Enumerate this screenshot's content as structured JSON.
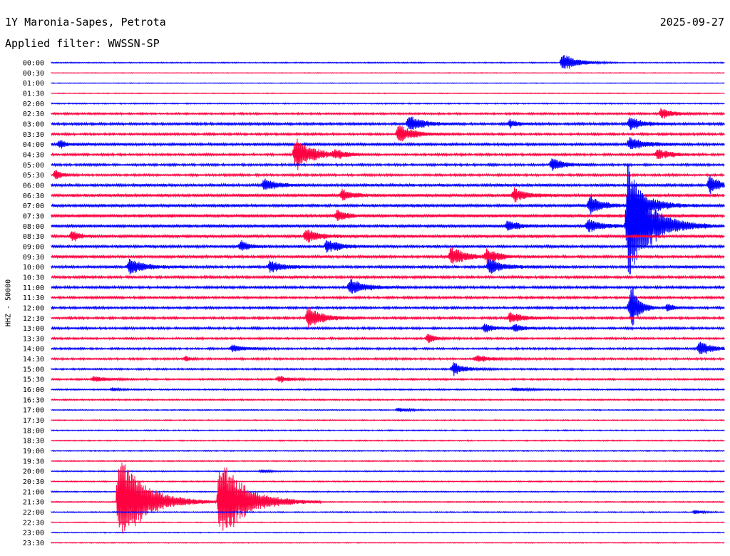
{
  "header": {
    "station": "1Y Maronia-Sapes, Petrota",
    "date": "2025-09-27",
    "filter": "Applied filter: WWSSN-SP"
  },
  "chart_data": {
    "type": "line",
    "subtype": "helicorder",
    "ylabel": "HHZ - 50000",
    "row_labels": [
      "00:00",
      "00:30",
      "01:00",
      "01:30",
      "02:00",
      "02:30",
      "03:00",
      "03:30",
      "04:00",
      "04:30",
      "05:00",
      "05:30",
      "06:00",
      "06:30",
      "07:00",
      "07:30",
      "08:00",
      "08:30",
      "09:00",
      "09:30",
      "10:00",
      "10:30",
      "11:00",
      "11:30",
      "12:00",
      "12:30",
      "13:00",
      "13:30",
      "14:00",
      "14:30",
      "15:00",
      "15:30",
      "16:00",
      "16:30",
      "17:00",
      "17:30",
      "18:00",
      "18:30",
      "19:00",
      "19:30",
      "20:00",
      "20:30",
      "21:00",
      "21:30",
      "22:00",
      "22:30",
      "23:00",
      "23:30"
    ],
    "colors": [
      "#0000ff",
      "#ff0040"
    ],
    "noise_levels": [
      0.8,
      0.5,
      0.5,
      0.6,
      0.8,
      1.4,
      1.8,
      1.6,
      2.0,
      1.6,
      1.6,
      1.6,
      2.0,
      2.2,
      2.2,
      2.4,
      2.2,
      2.2,
      2.0,
      2.0,
      2.0,
      1.8,
      1.8,
      1.6,
      1.6,
      1.6,
      1.6,
      1.4,
      1.4,
      1.4,
      1.2,
      1.2,
      1.0,
      1.0,
      0.8,
      0.8,
      0.8,
      0.8,
      0.8,
      0.8,
      0.8,
      0.8,
      0.8,
      0.8,
      0.8,
      0.6,
      0.6,
      0.6
    ],
    "events": [
      {
        "row": 0,
        "minute": 24.3,
        "amplitude": 14,
        "duration": 1.2
      },
      {
        "row": 5,
        "minute": 29.0,
        "amplitude": 8,
        "duration": 1.0
      },
      {
        "row": 6,
        "minute": 17.0,
        "amplitude": 12,
        "duration": 1.2
      },
      {
        "row": 6,
        "minute": 21.8,
        "amplitude": 6,
        "duration": 0.6
      },
      {
        "row": 6,
        "minute": 27.5,
        "amplitude": 10,
        "duration": 1.0
      },
      {
        "row": 7,
        "minute": 16.5,
        "amplitude": 14,
        "duration": 1.2
      },
      {
        "row": 8,
        "minute": 0.4,
        "amplitude": 6,
        "duration": 0.6
      },
      {
        "row": 8,
        "minute": 27.5,
        "amplitude": 10,
        "duration": 1.2
      },
      {
        "row": 9,
        "minute": 11.6,
        "amplitude": 26,
        "duration": 1.4
      },
      {
        "row": 9,
        "minute": 13.5,
        "amplitude": 6,
        "duration": 0.8
      },
      {
        "row": 9,
        "minute": 28.8,
        "amplitude": 9,
        "duration": 1.0
      },
      {
        "row": 10,
        "minute": 23.8,
        "amplitude": 10,
        "duration": 1.0
      },
      {
        "row": 11,
        "minute": 0.2,
        "amplitude": 8,
        "duration": 0.5
      },
      {
        "row": 12,
        "minute": 10.1,
        "amplitude": 10,
        "duration": 1.0
      },
      {
        "row": 12,
        "minute": 31.3,
        "amplitude": 14,
        "duration": 1.0
      },
      {
        "row": 13,
        "minute": 13.8,
        "amplitude": 8,
        "duration": 1.0
      },
      {
        "row": 13,
        "minute": 22.0,
        "amplitude": 10,
        "duration": 1.0
      },
      {
        "row": 14,
        "minute": 25.6,
        "amplitude": 14,
        "duration": 1.0
      },
      {
        "row": 14,
        "minute": 27.6,
        "amplitude": 34,
        "duration": 1.4
      },
      {
        "row": 15,
        "minute": 13.6,
        "amplitude": 8,
        "duration": 0.8
      },
      {
        "row": 16,
        "minute": 21.7,
        "amplitude": 9,
        "duration": 0.8
      },
      {
        "row": 16,
        "minute": 25.5,
        "amplitude": 10,
        "duration": 1.2
      },
      {
        "row": 16,
        "minute": 27.4,
        "amplitude": 90,
        "duration": 1.8
      },
      {
        "row": 17,
        "minute": 1.0,
        "amplitude": 8,
        "duration": 0.6
      },
      {
        "row": 17,
        "minute": 12.1,
        "amplitude": 10,
        "duration": 1.0
      },
      {
        "row": 18,
        "minute": 9.0,
        "amplitude": 8,
        "duration": 0.8
      },
      {
        "row": 18,
        "minute": 13.1,
        "amplitude": 10,
        "duration": 1.0
      },
      {
        "row": 19,
        "minute": 19.0,
        "amplitude": 14,
        "duration": 1.2
      },
      {
        "row": 19,
        "minute": 20.7,
        "amplitude": 10,
        "duration": 1.0
      },
      {
        "row": 20,
        "minute": 3.7,
        "amplitude": 12,
        "duration": 1.2
      },
      {
        "row": 20,
        "minute": 10.4,
        "amplitude": 10,
        "duration": 1.0
      },
      {
        "row": 20,
        "minute": 20.8,
        "amplitude": 12,
        "duration": 1.2
      },
      {
        "row": 22,
        "minute": 14.2,
        "amplitude": 12,
        "duration": 1.2
      },
      {
        "row": 24,
        "minute": 27.5,
        "amplitude": 14,
        "duration": 0.6
      },
      {
        "row": 24,
        "minute": 27.6,
        "amplitude": 26,
        "duration": 0.6
      },
      {
        "row": 24,
        "minute": 29.3,
        "amplitude": 6,
        "duration": 0.6
      },
      {
        "row": 25,
        "minute": 12.2,
        "amplitude": 16,
        "duration": 1.2
      },
      {
        "row": 25,
        "minute": 21.8,
        "amplitude": 8,
        "duration": 1.2
      },
      {
        "row": 26,
        "minute": 20.6,
        "amplitude": 6,
        "duration": 0.8
      },
      {
        "row": 26,
        "minute": 22.0,
        "amplitude": 6,
        "duration": 0.8
      },
      {
        "row": 27,
        "minute": 17.9,
        "amplitude": 6,
        "duration": 0.8
      },
      {
        "row": 28,
        "minute": 8.6,
        "amplitude": 6,
        "duration": 1.0
      },
      {
        "row": 28,
        "minute": 30.8,
        "amplitude": 12,
        "duration": 1.0
      },
      {
        "row": 29,
        "minute": 6.4,
        "amplitude": 4,
        "duration": 0.4
      },
      {
        "row": 29,
        "minute": 20.2,
        "amplitude": 5,
        "duration": 1.2
      },
      {
        "row": 30,
        "minute": 19.1,
        "amplitude": 10,
        "duration": 1.0
      },
      {
        "row": 31,
        "minute": 2.0,
        "amplitude": 4,
        "duration": 1.2
      },
      {
        "row": 31,
        "minute": 10.8,
        "amplitude": 6,
        "duration": 0.8
      },
      {
        "row": 32,
        "minute": 2.9,
        "amplitude": 3,
        "duration": 0.6
      },
      {
        "row": 32,
        "minute": 22.0,
        "amplitude": 3,
        "duration": 1.2
      },
      {
        "row": 34,
        "minute": 16.5,
        "amplitude": 4,
        "duration": 0.8
      },
      {
        "row": 40,
        "minute": 10.0,
        "amplitude": 3,
        "duration": 0.6
      },
      {
        "row": 43,
        "minute": 3.2,
        "amplitude": 70,
        "duration": 2.2
      },
      {
        "row": 43,
        "minute": 8.0,
        "amplitude": 64,
        "duration": 2.2
      },
      {
        "row": 44,
        "minute": 30.6,
        "amplitude": 4,
        "duration": 0.6
      }
    ]
  }
}
